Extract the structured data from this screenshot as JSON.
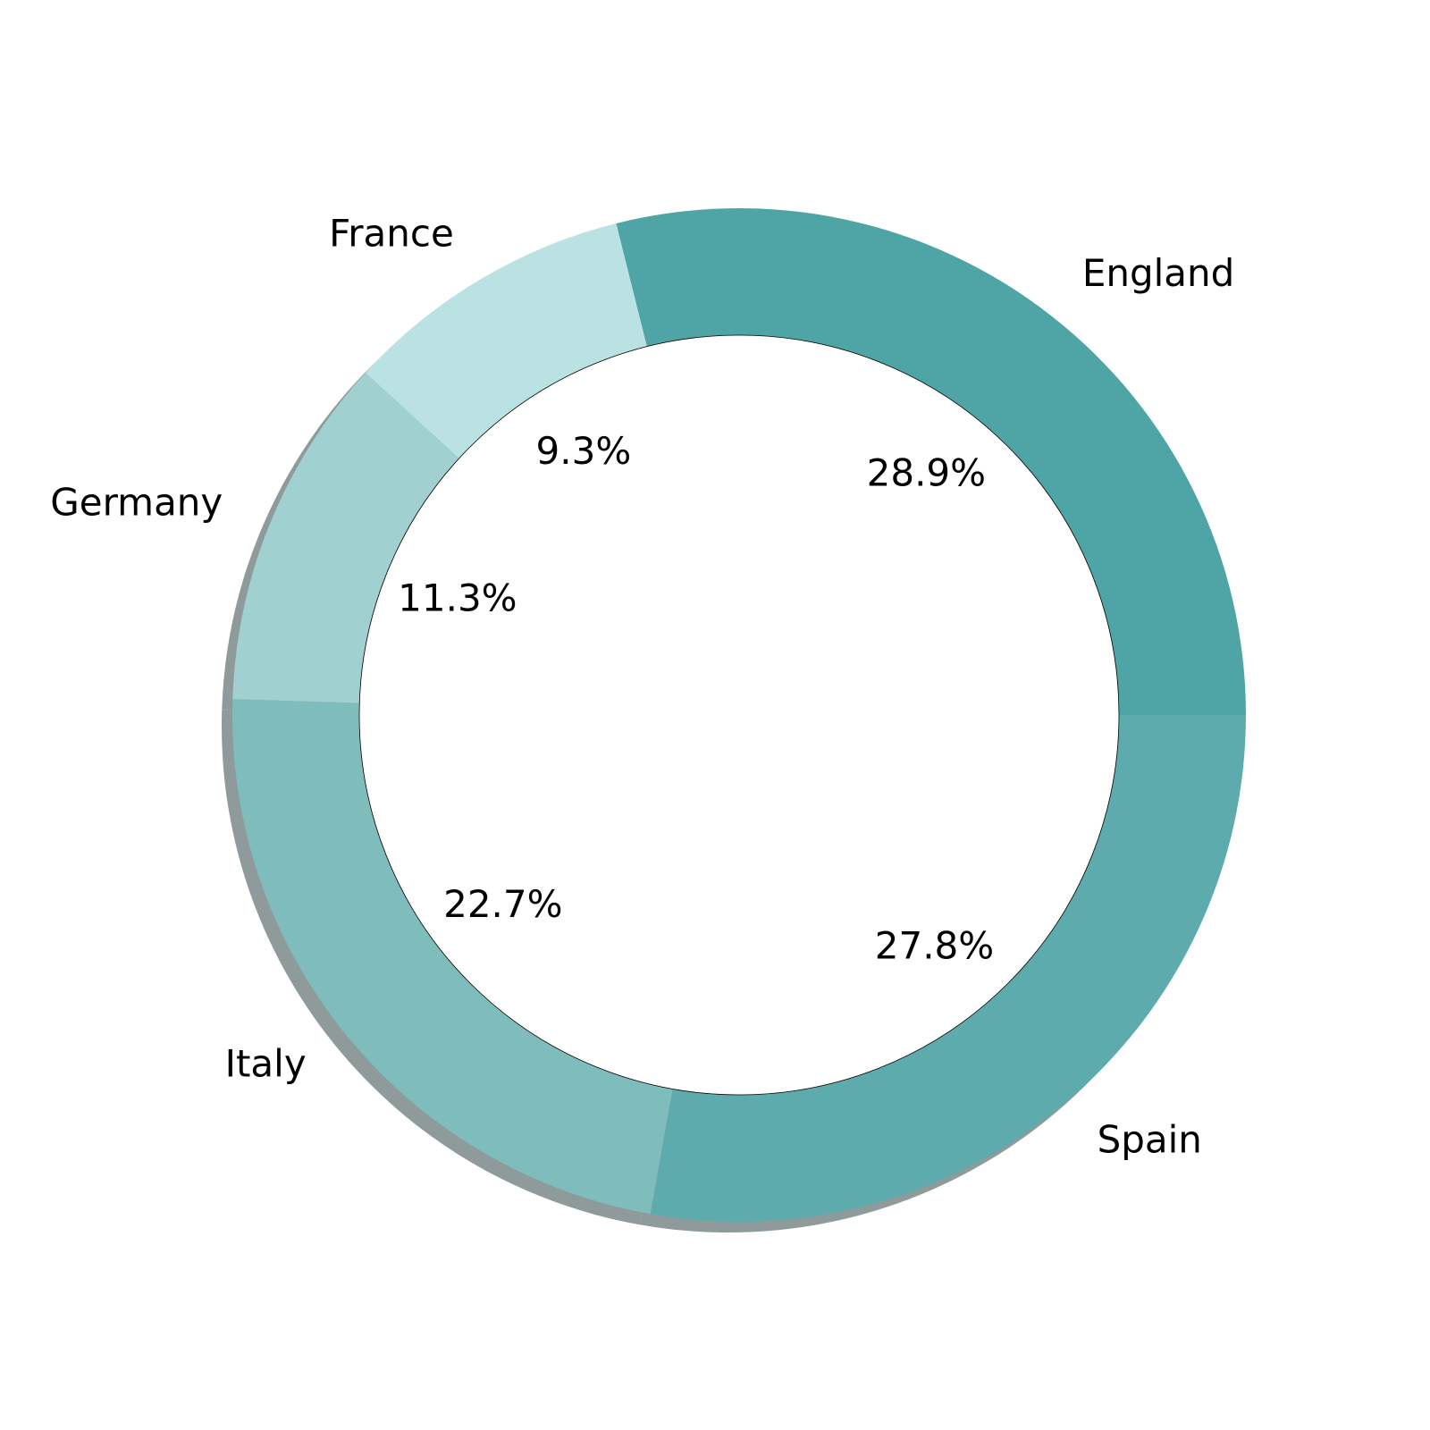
{
  "chart_data": {
    "type": "pie",
    "style": "donut",
    "title": "",
    "categories": [
      "England",
      "France",
      "Germany",
      "Italy",
      "Spain"
    ],
    "values": [
      28.9,
      9.3,
      11.3,
      22.7,
      27.8
    ],
    "value_labels": [
      "28.9%",
      "9.3%",
      "11.3%",
      "22.7%",
      "27.8%"
    ],
    "colors": [
      "#4fa5a5",
      "#bae2e2",
      "#a0d1d0",
      "#7ebdbc",
      "#5eabad"
    ],
    "start_angle_deg": 0,
    "direction": "counterclockwise",
    "shadow": true,
    "legend": "none"
  }
}
